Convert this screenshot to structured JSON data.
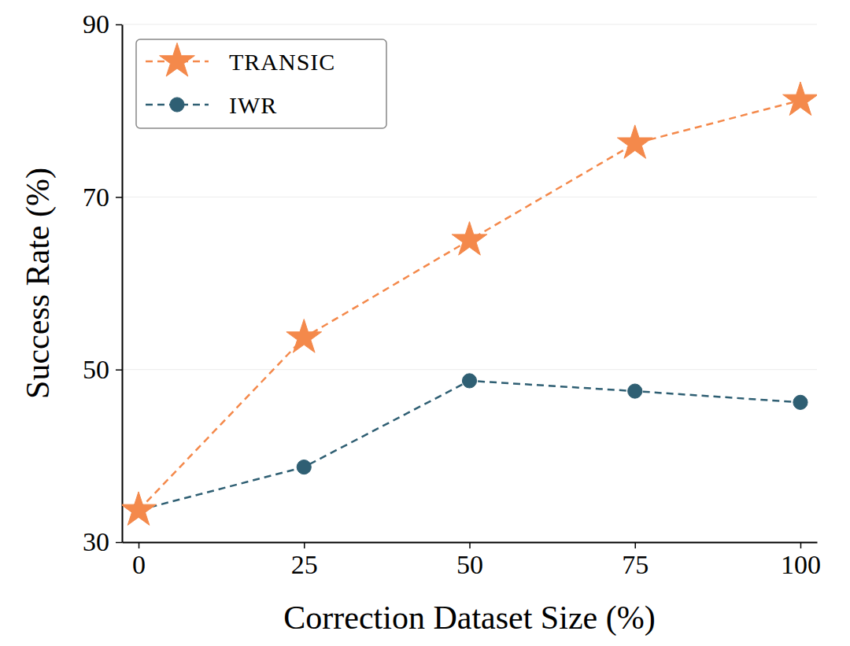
{
  "chart_data": {
    "type": "line",
    "x_label": "Correction Dataset Size (%)",
    "y_label": "Success Rate (%)",
    "x": [
      0,
      25,
      50,
      75,
      100
    ],
    "series": [
      {
        "name": "TRANSIC",
        "color": "#f4894b",
        "marker": "star",
        "line_style": "dashed",
        "values": [
          33.7,
          53.7,
          65.0,
          76.2,
          81.2
        ]
      },
      {
        "name": "IWR",
        "color": "#2f5f73",
        "marker": "circle",
        "line_style": "dashed",
        "values": [
          33.7,
          38.7,
          48.7,
          47.5,
          46.2
        ]
      }
    ],
    "xlim": [
      -2.5,
      102.5
    ],
    "xticks": [
      0,
      25,
      50,
      75,
      100
    ],
    "ylim": [
      30,
      90
    ],
    "yticks": [
      30,
      50,
      70,
      90
    ],
    "grid": true,
    "legend": "upper left"
  }
}
